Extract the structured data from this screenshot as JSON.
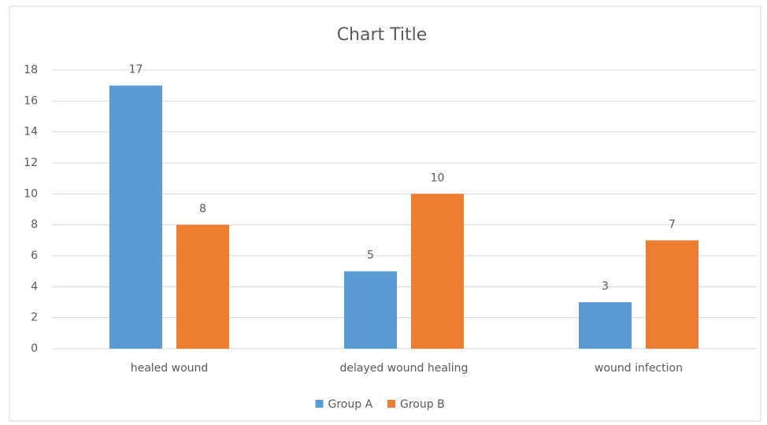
{
  "chart_data": {
    "type": "bar",
    "title": "Chart Title",
    "categories": [
      "healed wound",
      "delayed wound healing",
      "wound infection"
    ],
    "series": [
      {
        "name": "Group A",
        "color": "#5b9bd5",
        "values": [
          17,
          5,
          3
        ]
      },
      {
        "name": "Group B",
        "color": "#ed7d31",
        "values": [
          8,
          10,
          7
        ]
      }
    ],
    "ylim": [
      0,
      18
    ],
    "yticks": [
      0,
      2,
      4,
      6,
      8,
      10,
      12,
      14,
      16,
      18
    ],
    "grid": true,
    "legend": "bottom"
  }
}
